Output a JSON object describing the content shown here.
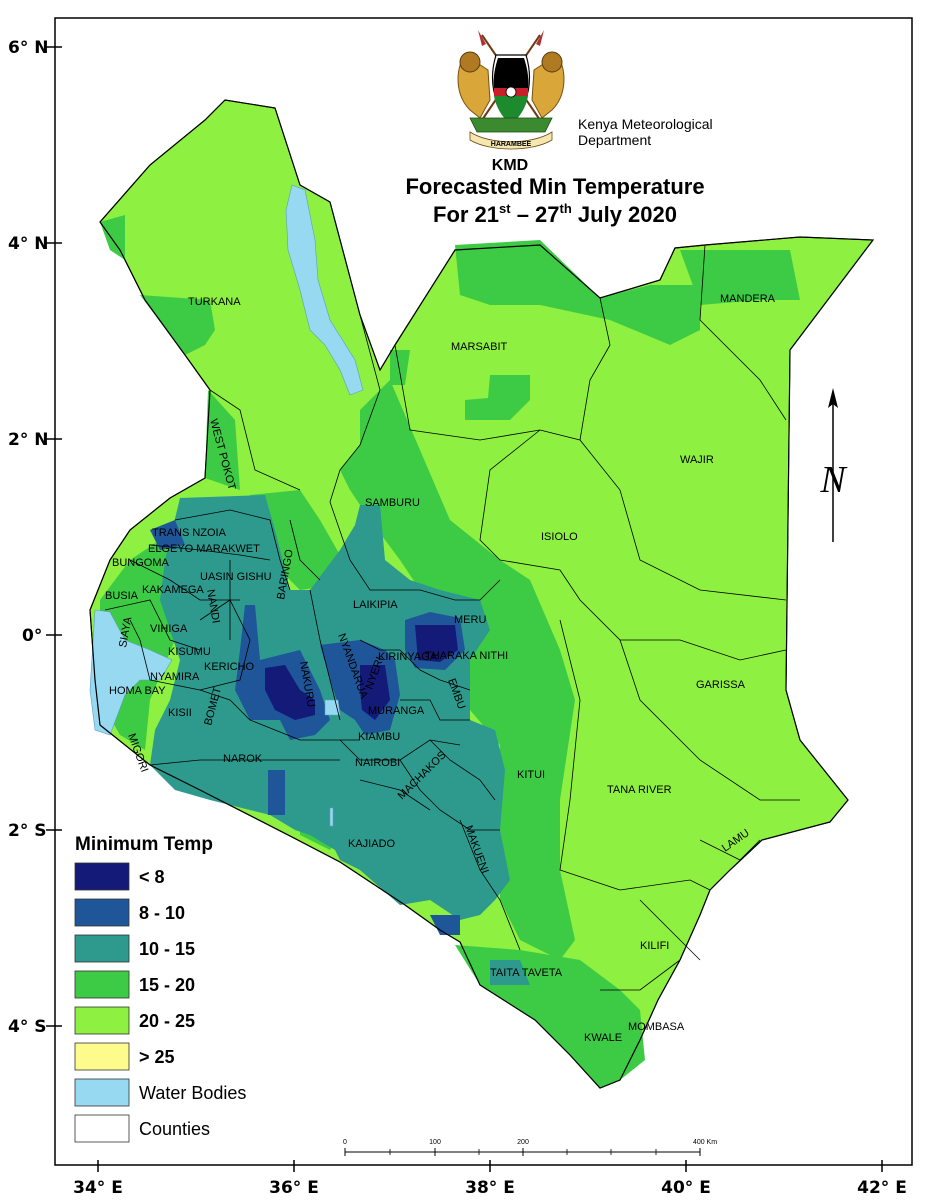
{
  "header": {
    "agency_line1": "Kenya Meteorological",
    "agency_line2": "Department",
    "seal_motto": "HARAMBEE",
    "acronym": "KMD",
    "title": "Forecasted Min Temperature",
    "subtitle_pre": "For 21",
    "subtitle_sup1": "st",
    "subtitle_mid": " – 27",
    "subtitle_sup2": "th",
    "subtitle_post": " July 2020"
  },
  "axes": {
    "lat_ticks": [
      "6° N",
      "4° N",
      "2° N",
      "0°",
      "2° S",
      "4° S"
    ],
    "lon_ticks": [
      "34° E",
      "36° E",
      "38° E",
      "40° E",
      "42° E"
    ]
  },
  "counties": [
    "TURKANA",
    "MARSABIT",
    "MANDERA",
    "WAJIR",
    "WEST POKOT",
    "SAMBURU",
    "ISIOLO",
    "TRANS NZOIA",
    "ELGEYO MARAKWET",
    "BUNGOMA",
    "UASIN GISHU",
    "BARINGO",
    "BUSIA",
    "KAKAMEGA",
    "NANDI",
    "LAIKIPIA",
    "MERU",
    "SIAYA",
    "VIHIGA",
    "KISUMU",
    "KERICHO",
    "NYANDARUA",
    "NYERI",
    "KIRINYAGA",
    "THARAKA NITHI",
    "GARISSA",
    "NYAMIRA",
    "HOMA BAY",
    "NAKURU",
    "EMBU",
    "KISII",
    "BOMET",
    "MURANGA",
    "MIGORI",
    "KIAMBU",
    "NAROK",
    "NAIROBI",
    "MACHAKOS",
    "KITUI",
    "TANA RIVER",
    "LAMU",
    "KAJIADO",
    "MAKUENI",
    "KILIFI",
    "TAITA TAVETA",
    "MOMBASA",
    "KWALE"
  ],
  "north_arrow": "N",
  "scale_bar": {
    "labels": [
      "0",
      "100",
      "200",
      "400 Km"
    ]
  },
  "legend": {
    "title": "Minimum Temp",
    "items": [
      {
        "label": "< 8",
        "color": "#141a78",
        "bold": true
      },
      {
        "label": "8 - 10",
        "color": "#1f5599",
        "bold": true
      },
      {
        "label": "10 - 15",
        "color": "#2e9a8e",
        "bold": true
      },
      {
        "label": "15 - 20",
        "color": "#3dcb45",
        "bold": true
      },
      {
        "label": "20 - 25",
        "color": "#8ef040",
        "bold": true
      },
      {
        "label": "> 25",
        "color": "#fdfb8c",
        "bold": true
      },
      {
        "label": "Water Bodies",
        "color": "#96d9f0",
        "bold": false
      },
      {
        "label": "Counties",
        "color": "#ffffff",
        "bold": false
      }
    ]
  }
}
